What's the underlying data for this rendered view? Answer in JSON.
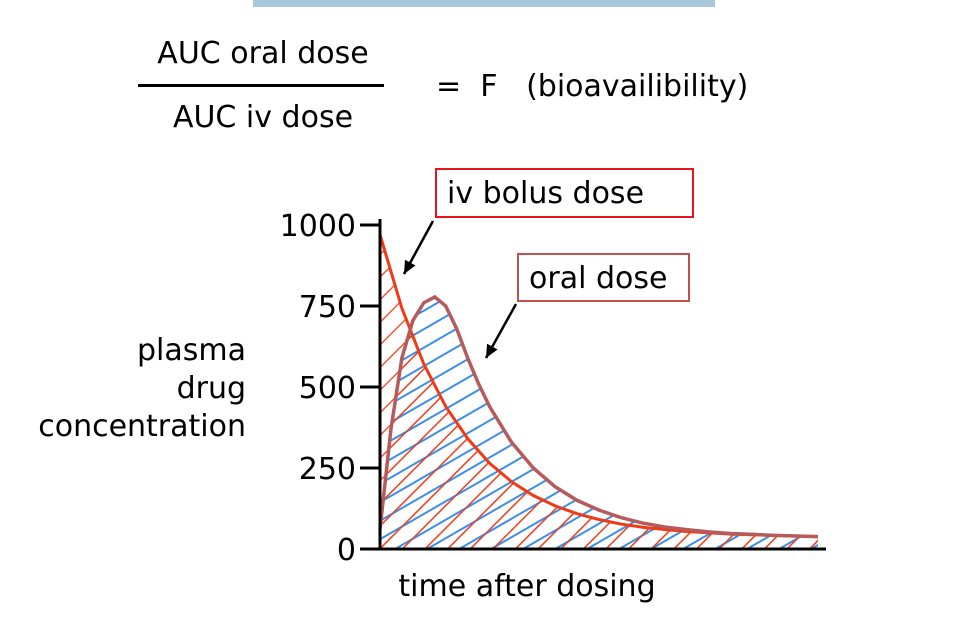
{
  "equation": {
    "numerator": "AUC oral dose",
    "denominator": "AUC iv dose",
    "equals_text": "=  F   (bioavailibility)"
  },
  "callouts": {
    "iv": "iv bolus dose",
    "oral": "oral dose"
  },
  "colors": {
    "iv": "#f03a17",
    "oral_hatch": "#3d8ee8",
    "oral_outline": "#b75a5a",
    "title_bar": "#a8c9dc"
  },
  "chart_data": {
    "type": "area",
    "xlabel": "time after dosing",
    "ylabel": [
      "plasma",
      "drug",
      "concentration"
    ],
    "ylim": [
      0,
      1000
    ],
    "y_ticks": [
      0,
      250,
      500,
      750,
      1000
    ],
    "x_ticks": [],
    "grid": false,
    "series": [
      {
        "name": "iv bolus dose",
        "x": [
          0,
          0.5,
          1,
          1.5,
          2,
          2.5,
          3,
          3.5,
          4,
          4.5,
          5,
          5.5,
          6,
          6.5,
          7,
          7.5,
          8,
          8.5,
          9,
          9.5,
          10
        ],
        "values": [
          970,
          743,
          571,
          440,
          341,
          265,
          208,
          165,
          133,
          109,
          91,
          77,
          67,
          60,
          54,
          50,
          46,
          44,
          42,
          40,
          39
        ]
      },
      {
        "name": "oral dose",
        "x": [
          0,
          0.25,
          0.5,
          0.75,
          1,
          1.25,
          1.5,
          1.75,
          2,
          2.25,
          2.5,
          3,
          3.5,
          4,
          4.5,
          5,
          5.5,
          6,
          6.5,
          7,
          7.5,
          8,
          8.5,
          9,
          9.5,
          10
        ],
        "values": [
          60,
          370,
          590,
          705,
          760,
          778,
          750,
          680,
          590,
          510,
          440,
          330,
          250,
          192,
          150,
          120,
          97,
          80,
          68,
          60,
          53,
          48,
          45,
          42,
          40,
          38
        ]
      }
    ]
  }
}
